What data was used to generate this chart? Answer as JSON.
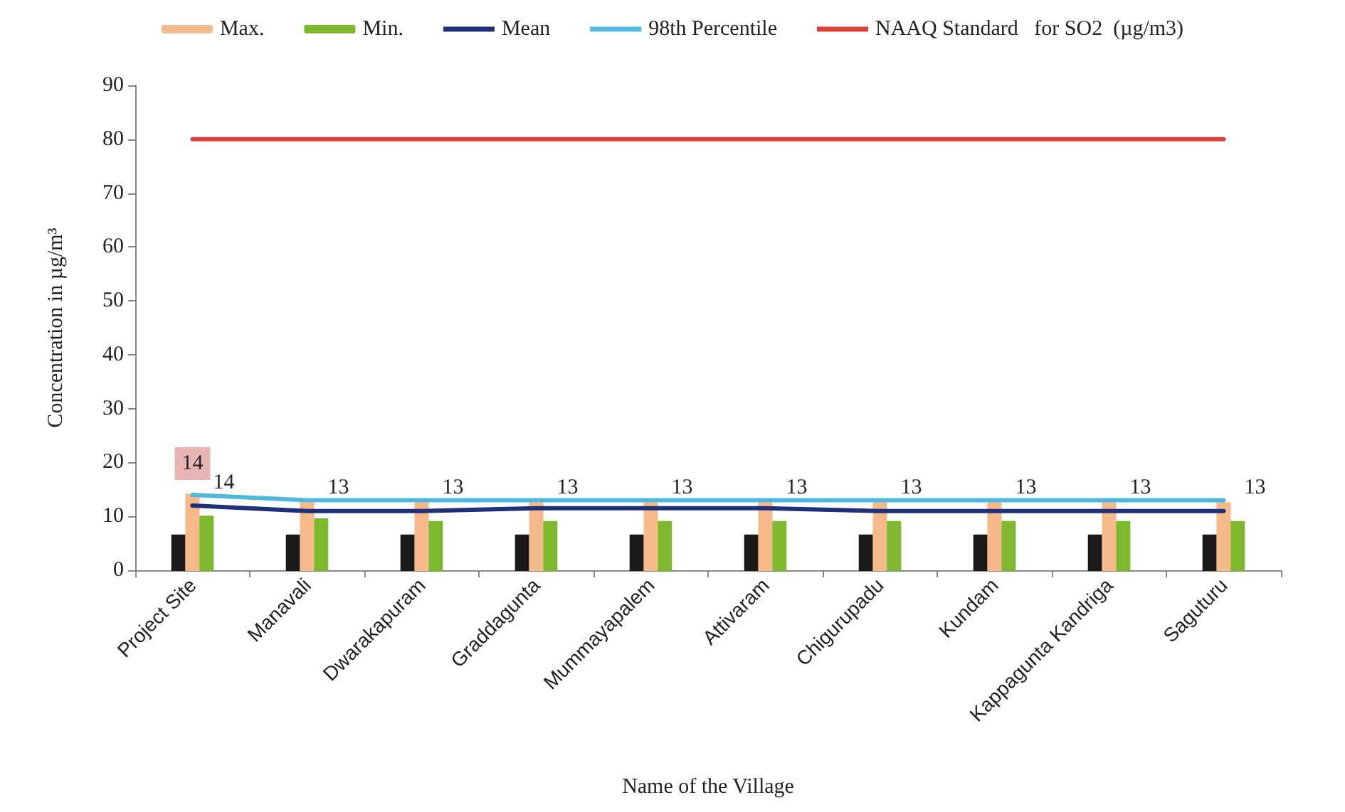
{
  "chart_data": {
    "type": "bar",
    "xlabel": "Name of the Village",
    "ylabel": "Concentration in µg/m³",
    "categories": [
      "Project Site",
      "Manavali",
      "Dwarakapuram",
      "Graddagunta",
      "Mummayapalem",
      "Attivaram",
      "Chigurupadu",
      "Kundam",
      "Kappagunta Kandriga",
      "Saguturu"
    ],
    "series": [
      {
        "color": "#1a1a1a",
        "values": [
          6.5,
          6.5,
          6.5,
          6.5,
          6.5,
          6.5,
          6.5,
          6.5,
          6.5,
          6.5
        ]
      },
      {
        "name": "Max.",
        "color": "#f5b98a",
        "values": [
          14,
          12.5,
          12.5,
          12.5,
          12.5,
          12.5,
          12.5,
          12.5,
          12.5,
          12.5
        ],
        "value_labels": [
          "14",
          null,
          null,
          null,
          null,
          null,
          null,
          null,
          null,
          null
        ]
      },
      {
        "name": "Min.",
        "color": "#7db82e",
        "values": [
          10,
          9.5,
          9,
          9,
          9,
          9,
          9,
          9,
          9,
          9
        ]
      },
      {
        "type": "line",
        "name": "Mean",
        "color": "#1f2f7a",
        "values": [
          12,
          11,
          11,
          11.5,
          11.5,
          11.5,
          11,
          11,
          11,
          11
        ]
      },
      {
        "type": "line",
        "name": "98th Percentile",
        "color": "#4fb8dc",
        "values": [
          14,
          13,
          13,
          13,
          13,
          13,
          13,
          13,
          13,
          13
        ],
        "value_labels": [
          "14",
          "13",
          "13",
          "13",
          "13",
          "13",
          "13",
          "13",
          "13",
          "13"
        ]
      },
      {
        "type": "line",
        "name": "NAAQ Standard   for SO2  (µg/m3)",
        "color": "#d9403a",
        "values": [
          80,
          80,
          80,
          80,
          80,
          80,
          80,
          80,
          80,
          80
        ]
      }
    ],
    "ylim": [
      0,
      90
    ],
    "yticks": [
      0,
      10,
      20,
      30,
      40,
      50,
      60,
      70,
      80,
      90
    ],
    "grid": false,
    "legend": "top",
    "marker": "none"
  }
}
